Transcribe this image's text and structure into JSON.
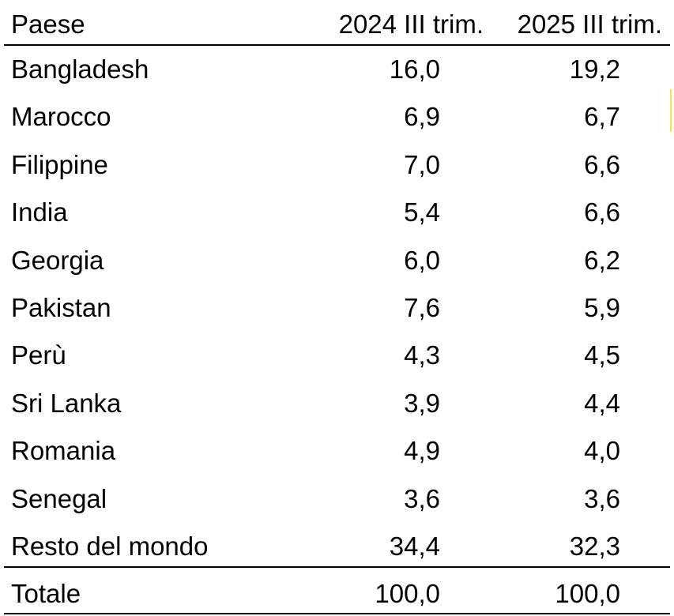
{
  "table": {
    "header": [
      "Paese",
      "2024 III trim.",
      "2025 III trim."
    ],
    "rows": [
      [
        "Bangladesh",
        "16,0",
        "19,2"
      ],
      [
        "Marocco",
        "6,9",
        "6,7"
      ],
      [
        "Filippine",
        "7,0",
        "6,6"
      ],
      [
        "India",
        "5,4",
        "6,6"
      ],
      [
        "Georgia",
        "6,0",
        "6,2"
      ],
      [
        "Pakistan",
        "7,6",
        "5,9"
      ],
      [
        "Perù",
        "4,3",
        "4,5"
      ],
      [
        "Sri Lanka",
        "3,9",
        "4,4"
      ],
      [
        "Romania",
        "4,9",
        "4,0"
      ],
      [
        "Senegal",
        "3,6",
        "3,6"
      ],
      [
        "Resto del mondo",
        "34,4",
        "32,3"
      ]
    ],
    "total": [
      "Totale",
      "100,0",
      "100,0"
    ]
  }
}
